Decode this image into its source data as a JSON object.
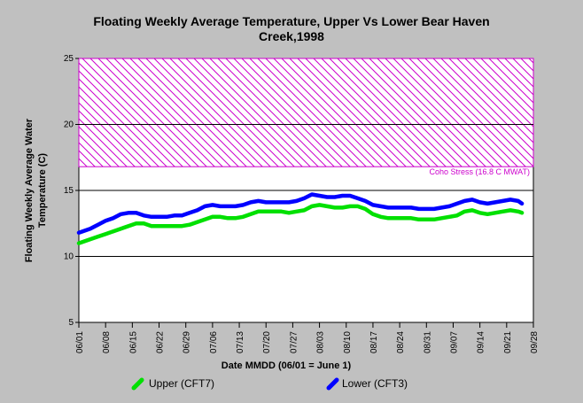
{
  "chart_data": {
    "type": "line",
    "title_lines": [
      "Floating Weekly Average Temperature, Upper Vs Lower Bear Haven",
      "Creek,1998"
    ],
    "xlabel": "Date MMDD (06/01 = June 1)",
    "ylabel_lines": [
      "Floating Weekly Average Water",
      "Temperature (C)"
    ],
    "ylim": [
      5,
      25
    ],
    "yticks": [
      5,
      10,
      15,
      20,
      25
    ],
    "x_day_range": [
      0,
      119
    ],
    "xtick_labels": [
      "06/01",
      "06/08",
      "06/15",
      "06/22",
      "06/29",
      "07/06",
      "07/13",
      "07/20",
      "07/27",
      "08/03",
      "08/10",
      "08/17",
      "08/24",
      "08/31",
      "09/07",
      "09/14",
      "09/21",
      "09/28"
    ],
    "grid": "horizontal",
    "threshold": {
      "label": "Coho Stress (16.8 C MWAT)",
      "from": 16.8,
      "to": 25,
      "color": "#cc00cc"
    },
    "series": [
      {
        "name": "Upper (CFT7)",
        "color": "#00e000",
        "x": [
          0,
          3,
          5,
          7,
          9,
          11,
          13,
          15,
          17,
          19,
          21,
          23,
          25,
          27,
          29,
          31,
          33,
          35,
          37,
          39,
          41,
          43,
          45,
          47,
          49,
          51,
          53,
          55,
          57,
          59,
          61,
          63,
          65,
          67,
          69,
          71,
          73,
          75,
          77,
          79,
          81,
          83,
          85,
          87,
          89,
          91,
          93,
          95,
          97,
          99,
          101,
          103,
          105,
          107,
          109,
          111,
          113,
          115,
          116
        ],
        "y": [
          11.0,
          11.3,
          11.5,
          11.7,
          11.9,
          12.1,
          12.3,
          12.5,
          12.5,
          12.3,
          12.3,
          12.3,
          12.3,
          12.3,
          12.4,
          12.6,
          12.8,
          13.0,
          13.0,
          12.9,
          12.9,
          13.0,
          13.2,
          13.4,
          13.4,
          13.4,
          13.4,
          13.3,
          13.4,
          13.5,
          13.8,
          13.9,
          13.8,
          13.7,
          13.7,
          13.8,
          13.8,
          13.6,
          13.2,
          13.0,
          12.9,
          12.9,
          12.9,
          12.9,
          12.8,
          12.8,
          12.8,
          12.9,
          13.0,
          13.1,
          13.4,
          13.5,
          13.3,
          13.2,
          13.3,
          13.4,
          13.5,
          13.4,
          13.3
        ]
      },
      {
        "name": "Lower (CFT3)",
        "color": "#0000ff",
        "x": [
          0,
          3,
          5,
          7,
          9,
          11,
          13,
          15,
          17,
          19,
          21,
          23,
          25,
          27,
          29,
          31,
          33,
          35,
          37,
          39,
          41,
          43,
          45,
          47,
          49,
          51,
          53,
          55,
          57,
          59,
          61,
          63,
          65,
          67,
          69,
          71,
          73,
          75,
          77,
          79,
          81,
          83,
          85,
          87,
          89,
          91,
          93,
          95,
          97,
          99,
          101,
          103,
          105,
          107,
          109,
          111,
          113,
          115,
          116
        ],
        "y": [
          11.8,
          12.1,
          12.4,
          12.7,
          12.9,
          13.2,
          13.3,
          13.3,
          13.1,
          13.0,
          13.0,
          13.0,
          13.1,
          13.1,
          13.3,
          13.5,
          13.8,
          13.9,
          13.8,
          13.8,
          13.8,
          13.9,
          14.1,
          14.2,
          14.1,
          14.1,
          14.1,
          14.1,
          14.2,
          14.4,
          14.7,
          14.6,
          14.5,
          14.5,
          14.6,
          14.6,
          14.4,
          14.2,
          13.9,
          13.8,
          13.7,
          13.7,
          13.7,
          13.7,
          13.6,
          13.6,
          13.6,
          13.7,
          13.8,
          14.0,
          14.2,
          14.3,
          14.1,
          14.0,
          14.1,
          14.2,
          14.3,
          14.2,
          14.0
        ]
      }
    ]
  }
}
